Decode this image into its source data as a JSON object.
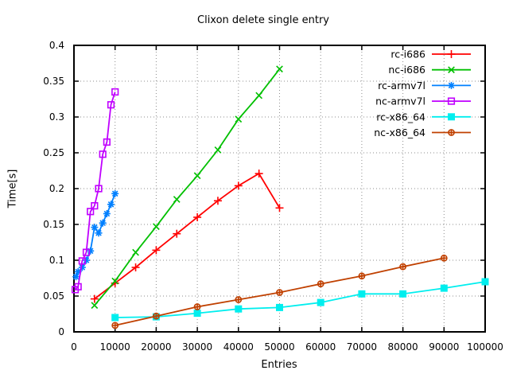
{
  "chart_data": {
    "type": "line",
    "title": "Clixon delete single entry",
    "xlabel": "Entries",
    "ylabel": "Time[s]",
    "xlim": [
      0,
      100000
    ],
    "ylim": [
      0,
      0.4
    ],
    "grid": true,
    "legend_position": "top-right-inside",
    "x_ticks": {
      "values": [
        0,
        10000,
        20000,
        30000,
        40000,
        50000,
        60000,
        70000,
        80000,
        90000,
        100000
      ],
      "labels": [
        "0",
        "10000",
        "20000",
        "30000",
        "40000",
        "50000",
        "60000",
        "70000",
        "80000",
        "90000",
        "100000"
      ]
    },
    "y_ticks": {
      "values": [
        0,
        0.05,
        0.1,
        0.15,
        0.2,
        0.25,
        0.3,
        0.35,
        0.4
      ],
      "labels": [
        "0",
        "0.05",
        "0.1",
        "0.15",
        "0.2",
        "0.25",
        "0.3",
        "0.35",
        "0.4"
      ]
    },
    "series": [
      {
        "name": "rc-i686",
        "color": "#ff0000",
        "marker": "plus",
        "points": [
          [
            5000,
            0.046
          ],
          [
            10000,
            0.068
          ],
          [
            15000,
            0.09
          ],
          [
            20000,
            0.114
          ],
          [
            25000,
            0.137
          ],
          [
            30000,
            0.16
          ],
          [
            35000,
            0.183
          ],
          [
            40000,
            0.204
          ],
          [
            45000,
            0.221
          ],
          [
            50000,
            0.173
          ]
        ]
      },
      {
        "name": "nc-i686",
        "color": "#00c000",
        "marker": "cross",
        "points": [
          [
            5000,
            0.037
          ],
          [
            10000,
            0.071
          ],
          [
            15000,
            0.111
          ],
          [
            20000,
            0.147
          ],
          [
            25000,
            0.185
          ],
          [
            30000,
            0.218
          ],
          [
            35000,
            0.254
          ],
          [
            40000,
            0.297
          ],
          [
            45000,
            0.33
          ],
          [
            50000,
            0.367
          ]
        ]
      },
      {
        "name": "rc-armv7l",
        "color": "#0080ff",
        "marker": "asterisk",
        "points": [
          [
            500,
            0.077
          ],
          [
            1000,
            0.084
          ],
          [
            2000,
            0.09
          ],
          [
            3000,
            0.1
          ],
          [
            4000,
            0.113
          ],
          [
            5000,
            0.146
          ],
          [
            6000,
            0.138
          ],
          [
            7000,
            0.152
          ],
          [
            8000,
            0.165
          ],
          [
            9000,
            0.178
          ],
          [
            10000,
            0.193
          ]
        ]
      },
      {
        "name": "nc-armv7l",
        "color": "#c000ff",
        "marker": "open-square",
        "points": [
          [
            300,
            0.059
          ],
          [
            1000,
            0.063
          ],
          [
            2000,
            0.099
          ],
          [
            3000,
            0.111
          ],
          [
            4000,
            0.168
          ],
          [
            5000,
            0.176
          ],
          [
            6000,
            0.2
          ],
          [
            7000,
            0.248
          ],
          [
            8000,
            0.265
          ],
          [
            9000,
            0.317
          ],
          [
            10000,
            0.335
          ]
        ]
      },
      {
        "name": "rc-x86_64",
        "color": "#00eeee",
        "marker": "filled-square",
        "points": [
          [
            10000,
            0.02
          ],
          [
            20000,
            0.021
          ],
          [
            30000,
            0.026
          ],
          [
            40000,
            0.032
          ],
          [
            50000,
            0.034
          ],
          [
            60000,
            0.041
          ],
          [
            70000,
            0.053
          ],
          [
            80000,
            0.053
          ],
          [
            90000,
            0.061
          ],
          [
            100000,
            0.07
          ]
        ]
      },
      {
        "name": "nc-x86_64",
        "color": "#c04000",
        "marker": "circle-plus",
        "points": [
          [
            10000,
            0.009
          ],
          [
            20000,
            0.022
          ],
          [
            30000,
            0.035
          ],
          [
            40000,
            0.045
          ],
          [
            50000,
            0.055
          ],
          [
            60000,
            0.067
          ],
          [
            70000,
            0.078
          ],
          [
            80000,
            0.091
          ],
          [
            90000,
            0.103
          ]
        ]
      }
    ]
  }
}
